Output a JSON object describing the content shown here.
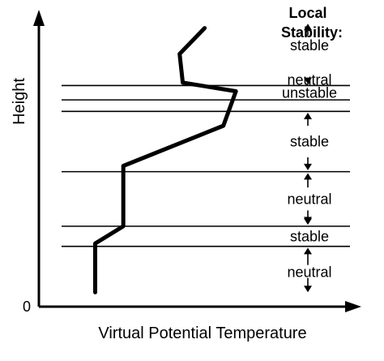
{
  "chart_data": {
    "type": "line",
    "xlabel": "Virtual Potential Temperature",
    "ylabel": "Height",
    "origin_label": "0",
    "legend_title": [
      "Local",
      "Stability:"
    ],
    "grid": false,
    "profile": [
      {
        "x": 0.18,
        "y": 0.05
      },
      {
        "x": 0.18,
        "y": 0.22
      },
      {
        "x": 0.27,
        "y": 0.28
      },
      {
        "x": 0.27,
        "y": 0.49
      },
      {
        "x": 0.59,
        "y": 0.63
      },
      {
        "x": 0.63,
        "y": 0.75
      },
      {
        "x": 0.46,
        "y": 0.78
      },
      {
        "x": 0.45,
        "y": 0.88
      },
      {
        "x": 0.53,
        "y": 0.97
      }
    ],
    "boundaries": [
      0.21,
      0.28,
      0.47,
      0.68,
      0.72,
      0.77
    ],
    "layers": [
      {
        "label": "neutral",
        "y": 0.12
      },
      {
        "label": "stable",
        "y": 0.245
      },
      {
        "label": "neutral",
        "y": 0.375
      },
      {
        "label": "stable",
        "y": 0.575
      },
      {
        "label": "unstable",
        "y": 0.745
      },
      {
        "label": "neutral",
        "y": 0.79
      },
      {
        "label": "stable",
        "y": 0.91
      }
    ]
  }
}
